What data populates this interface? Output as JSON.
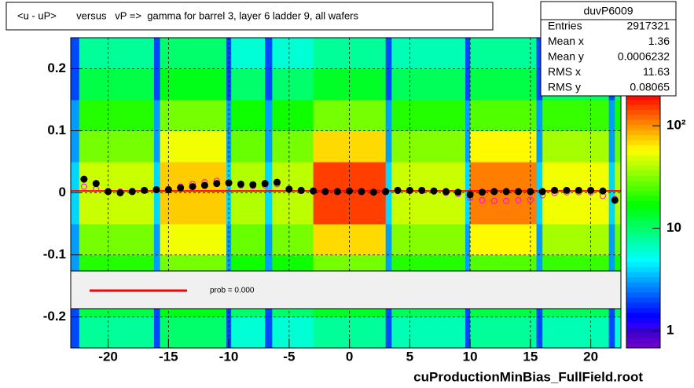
{
  "chart_data": {
    "type": "heatmap",
    "title": "<u - uP>       versus   vP =>  gamma for barrel 3, layer 6 ladder 9, all wafers",
    "x_label": "cuProductionMinBias_FullField.root",
    "xlim": [
      -23.1,
      22.5
    ],
    "ylim": [
      -0.25,
      0.25
    ],
    "xticks": [
      -20,
      -15,
      -10,
      -5,
      0,
      5,
      10,
      15,
      20
    ],
    "yticks": [
      -0.2,
      -0.1,
      0,
      0.1,
      0.2
    ],
    "grid": true,
    "zlim": [
      0.68,
      203
    ],
    "zscale": "log",
    "zticks": [
      1,
      10,
      {
        "value": 100,
        "label": "10²"
      }
    ],
    "x_edges": [
      -23.1,
      -22.4,
      -16.2,
      -15.7,
      -10.2,
      -9.8,
      -7,
      -6.4,
      -3,
      3,
      3.5,
      9.6,
      10,
      15.5,
      16,
      21.5,
      22,
      22.5
    ],
    "y_edges": [
      -0.25,
      -0.2,
      -0.15,
      -0.1,
      -0.05,
      0,
      0.05,
      0.1,
      0.15,
      0.2,
      0.25
    ],
    "z": [
      [
        2,
        2,
        3,
        3,
        4,
        4,
        3,
        3,
        2,
        2
      ],
      [
        8,
        12,
        20,
        30,
        45,
        45,
        30,
        20,
        12,
        8
      ],
      [
        2,
        2,
        3,
        3,
        4,
        4,
        3,
        3,
        2,
        2
      ],
      [
        10,
        15,
        30,
        55,
        75,
        75,
        55,
        30,
        15,
        10
      ],
      [
        2,
        2,
        3,
        3,
        4,
        4,
        3,
        3,
        2,
        2
      ],
      [
        6,
        10,
        18,
        28,
        40,
        40,
        28,
        18,
        10,
        6
      ],
      [
        2,
        2,
        3,
        3,
        4,
        4,
        3,
        3,
        2,
        2
      ],
      [
        6,
        10,
        18,
        30,
        42,
        42,
        30,
        18,
        10,
        6
      ],
      [
        8,
        14,
        30,
        70,
        150,
        150,
        70,
        30,
        14,
        8
      ],
      [
        2,
        2,
        3,
        3,
        4,
        4,
        3,
        3,
        2,
        2
      ],
      [
        7,
        11,
        20,
        32,
        45,
        45,
        32,
        20,
        11,
        7
      ],
      [
        2,
        2,
        3,
        3,
        4,
        4,
        3,
        3,
        2,
        2
      ],
      [
        8,
        12,
        25,
        60,
        110,
        110,
        60,
        25,
        12,
        8
      ],
      [
        2,
        2,
        3,
        3,
        4,
        4,
        3,
        3,
        2,
        2
      ],
      [
        7,
        11,
        22,
        38,
        55,
        55,
        38,
        22,
        11,
        7
      ],
      [
        2,
        2,
        3,
        3,
        4,
        4,
        3,
        3,
        2,
        2
      ],
      [
        6,
        10,
        18,
        28,
        40,
        40,
        28,
        18,
        10,
        6
      ]
    ],
    "x": [
      -22,
      -21,
      -20,
      -19,
      -18,
      -17,
      -16,
      -15,
      -14,
      -13,
      -12,
      -11,
      -10,
      -9,
      -8,
      -7,
      -6,
      -5,
      -4,
      -3,
      -2,
      -1,
      0,
      1,
      2,
      3,
      4,
      5,
      6,
      7,
      8,
      9,
      10,
      11,
      12,
      13,
      14,
      15,
      16,
      17,
      18,
      19,
      20,
      21,
      22
    ],
    "series": [
      {
        "color": "#ff00ff",
        "marker": "open",
        "values": [
          0.01,
          0.006,
          0.002,
          0.002,
          0.003,
          0.004,
          0.005,
          0.006,
          0.01,
          0.014,
          0.017,
          0.019,
          0.015,
          0.012,
          0.011,
          0.012,
          0.014,
          0.005,
          0.003,
          0.002,
          0.001,
          0.001,
          0.002,
          0.001,
          0.0,
          0.002,
          0.003,
          0.003,
          0.003,
          0.002,
          0.0,
          -0.002,
          -0.008,
          -0.012,
          -0.013,
          -0.013,
          -0.012,
          -0.011,
          -0.004,
          0.0,
          0.001,
          0.001,
          0.001,
          -0.005,
          -0.01
        ]
      },
      {
        "color": "#000000",
        "marker": "filled",
        "values": [
          0.022,
          0.015,
          0.002,
          0.0,
          0.002,
          0.004,
          0.005,
          0.005,
          0.008,
          0.01,
          0.012,
          0.015,
          0.016,
          0.014,
          0.013,
          0.015,
          0.017,
          0.006,
          0.004,
          0.003,
          0.002,
          0.002,
          0.003,
          0.002,
          0.001,
          0.002,
          0.004,
          0.004,
          0.004,
          0.003,
          0.002,
          0.001,
          -0.003,
          0.001,
          0.002,
          0.002,
          0.002,
          0.002,
          0.002,
          0.004,
          0.004,
          0.004,
          0.004,
          0.003,
          -0.012
        ]
      }
    ],
    "fit": {
      "color": "#ff0000",
      "x": [
        -23.1,
        22.5
      ],
      "values": [
        0.003,
        0.003
      ]
    },
    "legend": {
      "text": "prob = 0.000"
    },
    "stats": {
      "name": "duvP6009",
      "rows": [
        [
          "Entries",
          "2917321"
        ],
        [
          "Mean x",
          "1.36"
        ],
        [
          "Mean y",
          "0.0006232"
        ],
        [
          "RMS x",
          "11.63"
        ],
        [
          "RMS y",
          "0.08065"
        ]
      ]
    }
  }
}
